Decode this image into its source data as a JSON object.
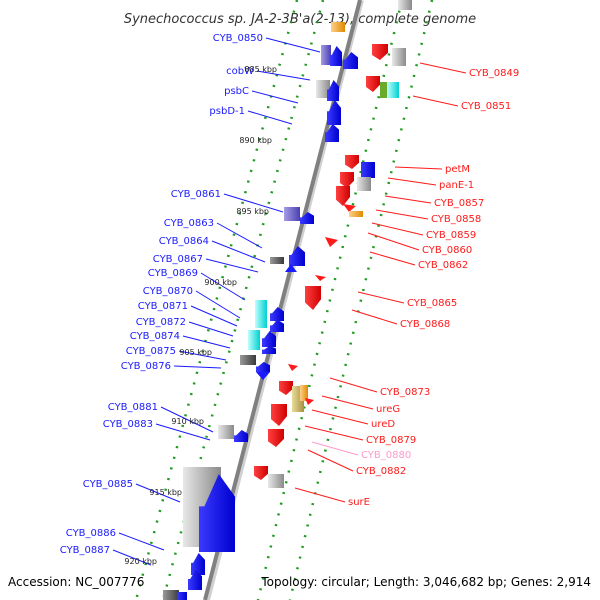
{
  "title": "Synechococcus sp. JA-2-3B'a(2-13), complete genome",
  "accession_text": "Accession: NC_007776",
  "topology_text": "Topology: circular; Length: 3,046,682 bp; Genes: 2,914",
  "colors": {
    "forward": "#1a1aff",
    "reverse": "#ff1a1a",
    "pseudo": "#ff99cc",
    "dots": "#1f9a1f",
    "backbone": "#808080"
  },
  "kbp_ticks": [
    "885 kbp",
    "890 kbp",
    "895 kbp",
    "900 kbp",
    "905 kbp",
    "910 kbp",
    "915 kbp",
    "920 kbp"
  ],
  "forward_genes": [
    "CYB_0850",
    "cobW",
    "psbC",
    "psbD-1",
    "CYB_0861",
    "CYB_0863",
    "CYB_0864",
    "CYB_0867",
    "CYB_0869",
    "CYB_0870",
    "CYB_0871",
    "CYB_0872",
    "CYB_0874",
    "CYB_0875",
    "CYB_0876",
    "CYB_0881",
    "CYB_0883",
    "CYB_0885",
    "CYB_0886",
    "CYB_0887"
  ],
  "reverse_genes": [
    "CYB_0849",
    "CYB_0851",
    "petM",
    "panE-1",
    "CYB_0857",
    "CYB_0858",
    "CYB_0859",
    "CYB_0860",
    "CYB_0862",
    "CYB_0865",
    "CYB_0868",
    "CYB_0873",
    "ureG",
    "ureD",
    "CYB_0879",
    "CYB_0880",
    "CYB_0882",
    "surE"
  ]
}
